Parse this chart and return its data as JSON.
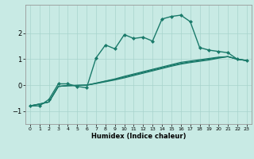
{
  "xlabel": "Humidex (Indice chaleur)",
  "ylabel": "",
  "background_color": "#c8eae4",
  "grid_color": "#a8d4cc",
  "line_color": "#1a7a6a",
  "xlim": [
    -0.5,
    23.5
  ],
  "ylim": [
    -1.5,
    3.1
  ],
  "yticks": [
    -1,
    0,
    1,
    2
  ],
  "xticks": [
    0,
    1,
    2,
    3,
    4,
    5,
    6,
    7,
    8,
    9,
    10,
    11,
    12,
    13,
    14,
    15,
    16,
    17,
    18,
    19,
    20,
    21,
    22,
    23
  ],
  "series": [
    {
      "x": [
        0,
        1,
        2,
        3,
        4,
        5,
        6,
        7,
        8,
        9,
        10,
        11,
        12,
        13,
        14,
        15,
        16,
        17,
        18,
        19,
        20,
        21,
        22,
        23
      ],
      "y": [
        -0.8,
        -0.8,
        -0.55,
        0.05,
        0.05,
        -0.05,
        -0.1,
        1.05,
        1.55,
        1.4,
        1.95,
        1.8,
        1.85,
        1.7,
        2.55,
        2.65,
        2.7,
        2.45,
        1.45,
        1.35,
        1.3,
        1.25,
        1.0,
        0.95
      ],
      "marker": "D",
      "markersize": 2.0,
      "linewidth": 1.0
    },
    {
      "x": [
        0,
        1,
        2,
        3,
        4,
        5,
        6,
        7,
        8,
        9,
        10,
        11,
        12,
        13,
        14,
        15,
        16,
        17,
        18,
        19,
        20,
        21,
        22,
        23
      ],
      "y": [
        -0.8,
        -0.73,
        -0.65,
        -0.05,
        -0.02,
        -0.01,
        0.0,
        0.08,
        0.16,
        0.24,
        0.34,
        0.43,
        0.52,
        0.61,
        0.7,
        0.79,
        0.88,
        0.93,
        0.98,
        1.03,
        1.08,
        1.1,
        1.0,
        0.95
      ],
      "marker": null,
      "markersize": 0,
      "linewidth": 0.9
    },
    {
      "x": [
        0,
        1,
        2,
        3,
        4,
        5,
        6,
        7,
        8,
        9,
        10,
        11,
        12,
        13,
        14,
        15,
        16,
        17,
        18,
        19,
        20,
        21,
        22,
        23
      ],
      "y": [
        -0.8,
        -0.73,
        -0.65,
        -0.05,
        -0.02,
        -0.01,
        0.0,
        0.07,
        0.15,
        0.22,
        0.31,
        0.4,
        0.49,
        0.58,
        0.67,
        0.76,
        0.84,
        0.9,
        0.95,
        1.0,
        1.06,
        1.1,
        1.0,
        0.95
      ],
      "marker": null,
      "markersize": 0,
      "linewidth": 0.9
    },
    {
      "x": [
        0,
        1,
        2,
        3,
        4,
        5,
        6,
        7,
        8,
        9,
        10,
        11,
        12,
        13,
        14,
        15,
        16,
        17,
        18,
        19,
        20,
        21,
        22,
        23
      ],
      "y": [
        -0.8,
        -0.73,
        -0.65,
        -0.05,
        -0.02,
        -0.01,
        0.0,
        0.06,
        0.13,
        0.2,
        0.28,
        0.37,
        0.46,
        0.55,
        0.64,
        0.73,
        0.81,
        0.87,
        0.92,
        0.97,
        1.04,
        1.1,
        1.0,
        0.95
      ],
      "marker": null,
      "markersize": 0,
      "linewidth": 0.9
    }
  ],
  "figwidth": 3.2,
  "figheight": 2.0,
  "dpi": 100
}
